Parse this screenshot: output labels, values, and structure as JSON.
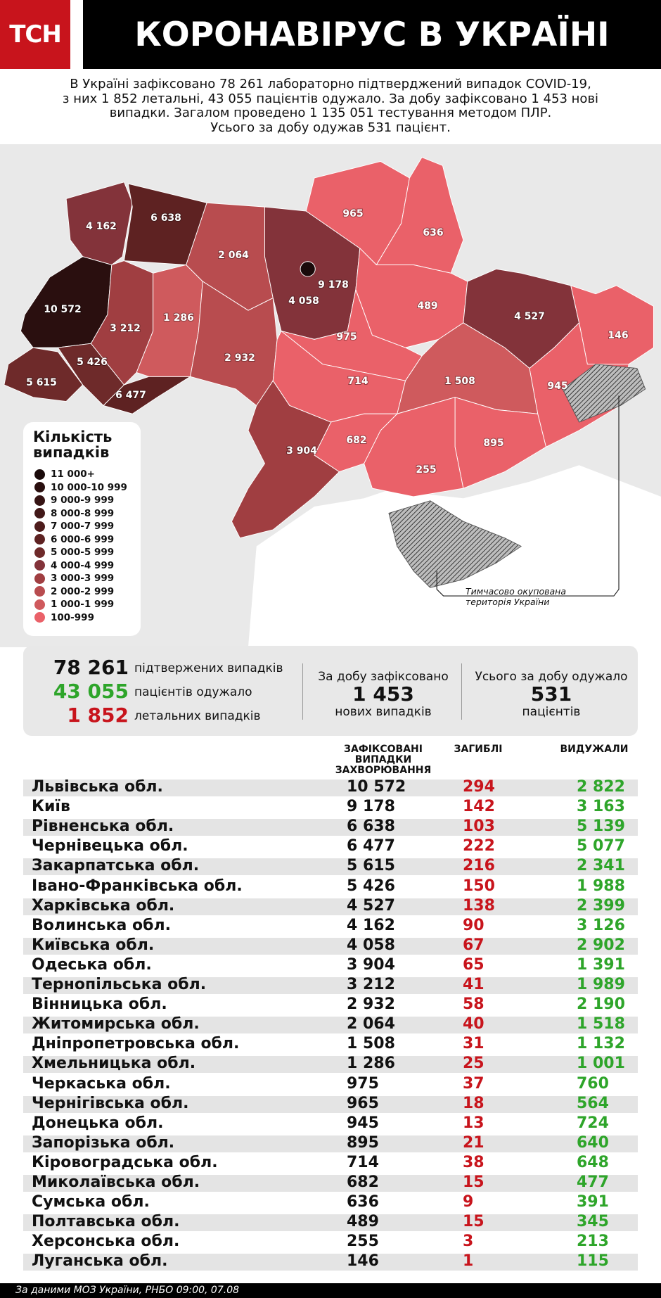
{
  "header": {
    "logo": "ТСН",
    "title": "КОРОНАВІРУС В УКРАЇНІ"
  },
  "intro": [
    "В Україні зафіксовано 78 261 лабораторно підтверджений випадок COVID-19,",
    "з них 1 852 летальні, 43 055 пацієнтів одужало. За добу зафіксовано 1 453 нові",
    "випадки. Загалом проведено 1 135 051 тестування методом ПЛР.",
    "Усього за добу одужав 531 пацієнт."
  ],
  "map": {
    "labels": [
      "4 162",
      "6 638",
      "2 064",
      "965",
      "636",
      "9 178",
      "4 058",
      "10 572",
      "3 212",
      "1 286",
      "489",
      "4 527",
      "146",
      "2 932",
      "975",
      "5 426",
      "5 615",
      "6 477",
      "714",
      "1 508",
      "945",
      "3 904",
      "682",
      "895",
      "255"
    ],
    "note": [
      "Тимчасово окупована",
      "територія України"
    ]
  },
  "legend": {
    "title": [
      "Кількість",
      "випадків"
    ],
    "items": [
      "11 000+",
      "10 000-10 999",
      "9 000-9 999",
      "8 000-8 999",
      "7 000-7 999",
      "6 000-6 999",
      "5 000-5 999",
      "4 000-4 999",
      "3 000-3 999",
      "2 000-2 999",
      "1 000-1 999",
      "100-999"
    ]
  },
  "stats": {
    "confirmed": {
      "value": "78 261",
      "label": "підтвержених випадків"
    },
    "recovered": {
      "value": "43 055",
      "label": "пацієнтів одужало"
    },
    "deaths": {
      "value": "1 852",
      "label": "летальних випадків"
    },
    "daily_new": {
      "caption": "За добу зафіксовано",
      "value": "1 453",
      "label": "нових випадків"
    },
    "daily_recovered": {
      "caption": "Усього за добу одужало",
      "value": "531",
      "label": "пацієнтів"
    }
  },
  "table": {
    "headers": [
      [
        "ЗАФІКСОВАНІ",
        "ВИПАДКИ",
        "ЗАХВОРЮВАННЯ"
      ],
      [
        "ЗАГИБЛІ"
      ],
      [
        "ВИДУЖАЛИ"
      ]
    ],
    "rows": [
      [
        "Львівська обл.",
        "10 572",
        "294",
        "2 822"
      ],
      [
        "Київ",
        "9 178",
        "142",
        "3 163"
      ],
      [
        "Рівненська обл.",
        "6 638",
        "103",
        "5 139"
      ],
      [
        "Чернівецька обл.",
        "6 477",
        "222",
        "5 077"
      ],
      [
        "Закарпатська обл.",
        "5 615",
        "216",
        "2 341"
      ],
      [
        "Івано-Франківська обл.",
        "5 426",
        "150",
        "1 988"
      ],
      [
        "Харківська обл.",
        "4 527",
        "138",
        "2 399"
      ],
      [
        "Волинська обл.",
        "4 162",
        "90",
        "3 126"
      ],
      [
        "Київська обл.",
        "4 058",
        "67",
        "2 902"
      ],
      [
        "Одеська обл.",
        "3 904",
        "65",
        "1 391"
      ],
      [
        "Тернопільська обл.",
        "3 212",
        "41",
        "1 989"
      ],
      [
        "Вінницька обл.",
        "2 932",
        "58",
        "2 190"
      ],
      [
        "Житомирська обл.",
        "2 064",
        "40",
        "1 518"
      ],
      [
        "Дніпропетровська обл.",
        "1 508",
        "31",
        "1 132"
      ],
      [
        "Хмельницька обл.",
        "1 286",
        "25",
        "1 001"
      ],
      [
        "Черкаська обл.",
        "975",
        "37",
        "760"
      ],
      [
        "Чернігівська обл.",
        "965",
        "18",
        "564"
      ],
      [
        "Донецька обл.",
        "945",
        "13",
        "724"
      ],
      [
        "Запорізька обл.",
        "895",
        "21",
        "640"
      ],
      [
        "Кіровоградська обл.",
        "714",
        "38",
        "648"
      ],
      [
        "Миколаївська обл.",
        "682",
        "15",
        "477"
      ],
      [
        "Сумська обл.",
        "636",
        "9",
        "391"
      ],
      [
        "Полтавська обл.",
        "489",
        "15",
        "345"
      ],
      [
        "Херсонська обл.",
        "255",
        "3",
        "213"
      ],
      [
        "Луганська обл.",
        "146",
        "1",
        "115"
      ]
    ]
  },
  "footer": "За даними МОЗ України, РНБО  09:00, 07.08"
}
